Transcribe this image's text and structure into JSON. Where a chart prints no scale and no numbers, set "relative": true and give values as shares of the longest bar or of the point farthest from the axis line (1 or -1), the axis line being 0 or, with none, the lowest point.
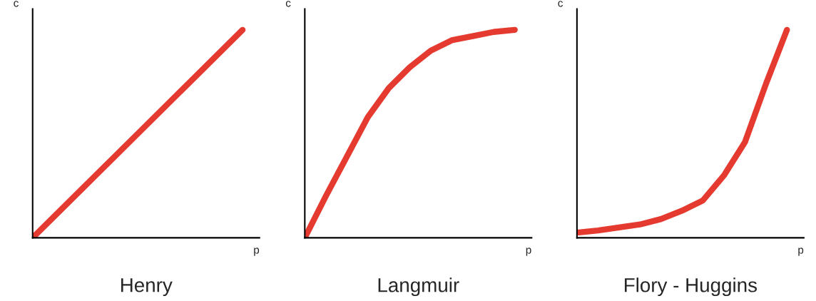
{
  "chart_data": [
    {
      "type": "line",
      "title": "Henry",
      "xlabel": "p",
      "ylabel": "c",
      "relative": true,
      "categories": [
        null,
        null,
        null,
        null,
        null
      ],
      "series": [
        {
          "color": "#e53a2f",
          "values": [
            0,
            0.25,
            0.5,
            0.75,
            1
          ]
        }
      ]
    },
    {
      "type": "line",
      "title": "Langmuir",
      "xlabel": "p",
      "ylabel": "c",
      "relative": true,
      "categories": [
        null,
        null,
        null,
        null,
        null,
        null,
        null,
        null,
        null,
        null,
        null
      ],
      "series": [
        {
          "color": "#e53a2f",
          "values": [
            0,
            0.2,
            0.39,
            0.58,
            0.72,
            0.82,
            0.9,
            0.95,
            0.97,
            0.99,
            1
          ]
        }
      ]
    },
    {
      "type": "line",
      "title": "Flory - Huggins",
      "xlabel": "p",
      "ylabel": "c",
      "relative": true,
      "categories": [
        null,
        null,
        null,
        null,
        null,
        null,
        null,
        null,
        null,
        null,
        null
      ],
      "series": [
        {
          "color": "#e53a2f",
          "values": [
            0.025,
            0.035,
            0.05,
            0.064,
            0.09,
            0.13,
            0.18,
            0.3,
            0.46,
            0.74,
            1
          ]
        }
      ]
    }
  ]
}
